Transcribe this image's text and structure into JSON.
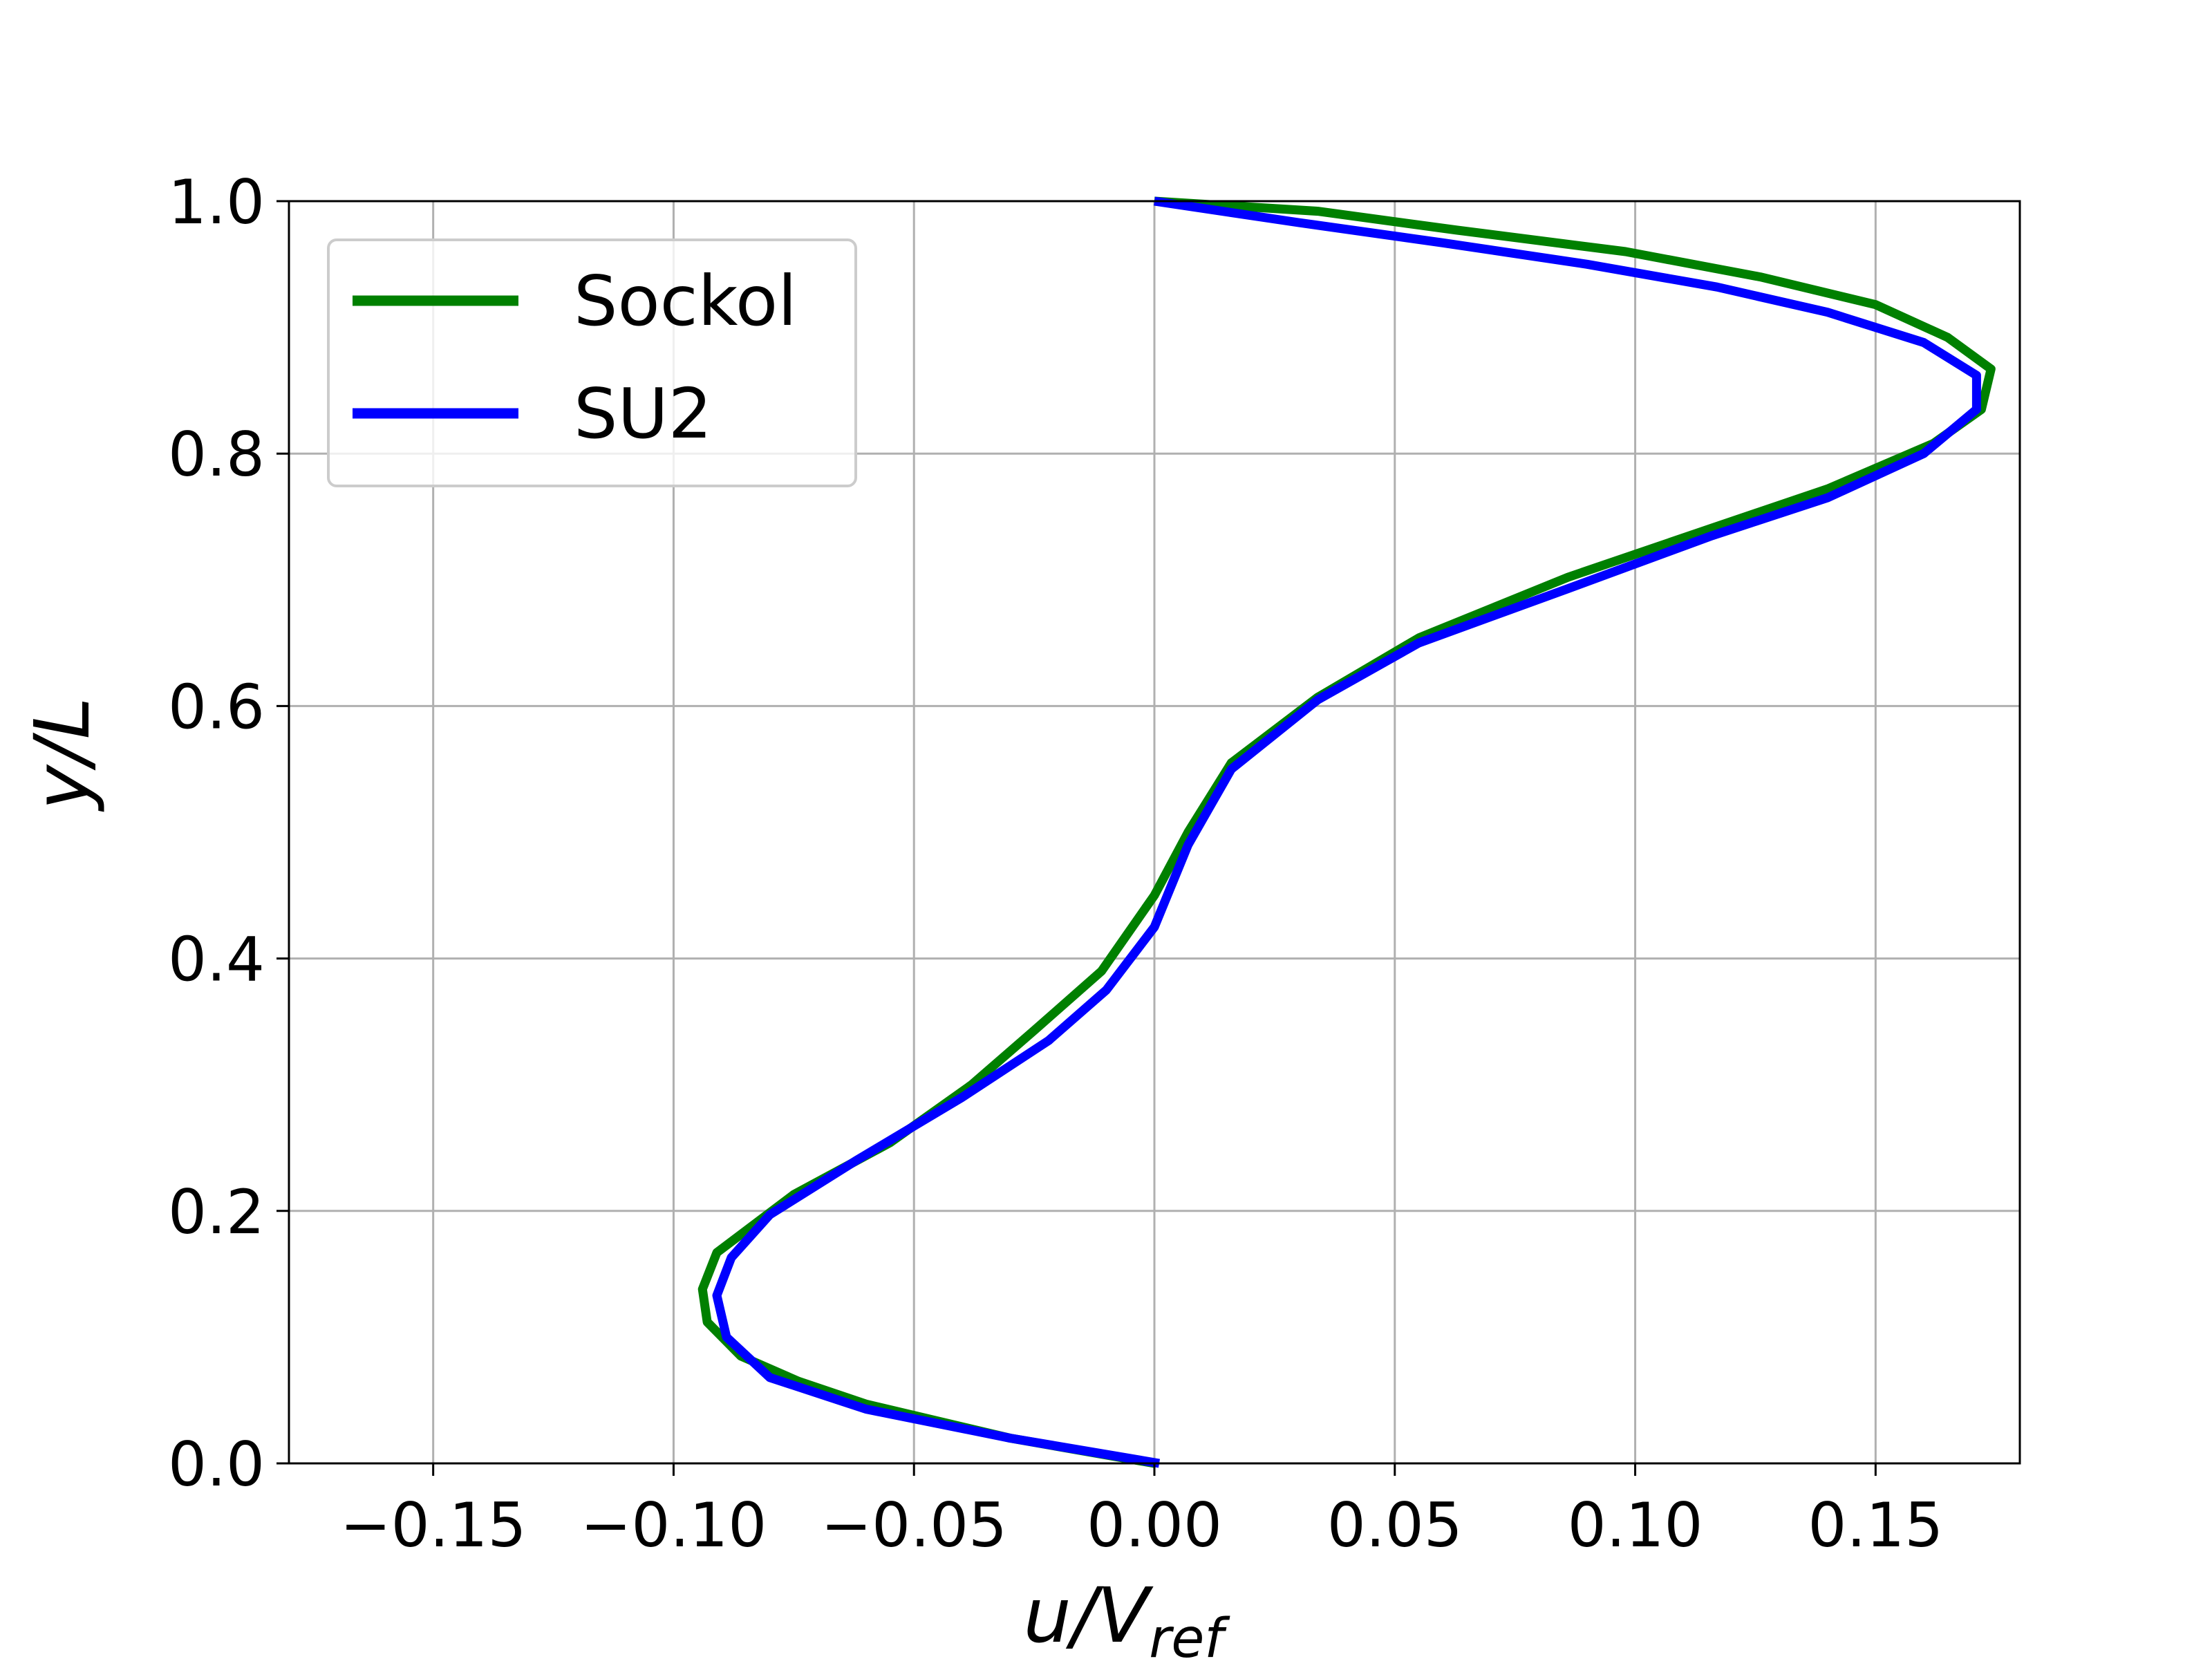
{
  "chart_data": {
    "type": "line",
    "xlabel": "u/V",
    "xlabel_sub": "ref",
    "ylabel": "y/L",
    "xlim": [
      -0.18,
      0.18
    ],
    "ylim": [
      0.0,
      1.0
    ],
    "x_ticks": [
      {
        "value": -0.15,
        "label": "−0.15"
      },
      {
        "value": -0.1,
        "label": "−0.10"
      },
      {
        "value": -0.05,
        "label": "−0.05"
      },
      {
        "value": 0.0,
        "label": "0.00"
      },
      {
        "value": 0.05,
        "label": "0.05"
      },
      {
        "value": 0.1,
        "label": "0.10"
      },
      {
        "value": 0.15,
        "label": "0.15"
      }
    ],
    "y_ticks": [
      {
        "value": 0.0,
        "label": "0.0"
      },
      {
        "value": 0.2,
        "label": "0.2"
      },
      {
        "value": 0.4,
        "label": "0.4"
      },
      {
        "value": 0.6,
        "label": "0.6"
      },
      {
        "value": 0.8,
        "label": "0.8"
      },
      {
        "value": 1.0,
        "label": "1.0"
      }
    ],
    "grid": true,
    "legend_position": "top-left",
    "series": [
      {
        "name": "Sockol",
        "color": "#008000",
        "points": [
          [
            0.0,
            0.0
          ],
          [
            -0.03,
            0.02
          ],
          [
            -0.06,
            0.047
          ],
          [
            -0.074,
            0.065
          ],
          [
            -0.086,
            0.085
          ],
          [
            -0.093,
            0.112
          ],
          [
            -0.094,
            0.138
          ],
          [
            -0.091,
            0.167
          ],
          [
            -0.075,
            0.213
          ],
          [
            -0.055,
            0.254
          ],
          [
            -0.038,
            0.3
          ],
          [
            -0.025,
            0.343
          ],
          [
            -0.011,
            0.39
          ],
          [
            0.0,
            0.45
          ],
          [
            0.007,
            0.5
          ],
          [
            0.016,
            0.555
          ],
          [
            0.034,
            0.607
          ],
          [
            0.055,
            0.654
          ],
          [
            0.086,
            0.702
          ],
          [
            0.116,
            0.741
          ],
          [
            0.14,
            0.772
          ],
          [
            0.162,
            0.808
          ],
          [
            0.172,
            0.835
          ],
          [
            0.174,
            0.867
          ],
          [
            0.165,
            0.892
          ],
          [
            0.15,
            0.918
          ],
          [
            0.126,
            0.94
          ],
          [
            0.098,
            0.96
          ],
          [
            0.063,
            0.977
          ],
          [
            0.034,
            0.992
          ],
          [
            0.0,
            1.0
          ]
        ]
      },
      {
        "name": "SU2",
        "color": "#0000ff",
        "points": [
          [
            0.001,
            0.0
          ],
          [
            -0.03,
            0.02
          ],
          [
            -0.06,
            0.043
          ],
          [
            -0.08,
            0.068
          ],
          [
            -0.089,
            0.1
          ],
          [
            -0.091,
            0.133
          ],
          [
            -0.088,
            0.163
          ],
          [
            -0.08,
            0.197
          ],
          [
            -0.062,
            0.24
          ],
          [
            -0.04,
            0.29
          ],
          [
            -0.022,
            0.335
          ],
          [
            -0.01,
            0.375
          ],
          [
            0.0,
            0.425
          ],
          [
            0.007,
            0.49
          ],
          [
            0.016,
            0.55
          ],
          [
            0.034,
            0.605
          ],
          [
            0.055,
            0.65
          ],
          [
            0.086,
            0.693
          ],
          [
            0.116,
            0.735
          ],
          [
            0.14,
            0.765
          ],
          [
            0.16,
            0.8
          ],
          [
            0.171,
            0.835
          ],
          [
            0.171,
            0.862
          ],
          [
            0.16,
            0.888
          ],
          [
            0.14,
            0.912
          ],
          [
            0.117,
            0.932
          ],
          [
            0.09,
            0.95
          ],
          [
            0.06,
            0.967
          ],
          [
            0.03,
            0.983
          ],
          [
            0.0,
            1.0
          ]
        ]
      }
    ]
  }
}
